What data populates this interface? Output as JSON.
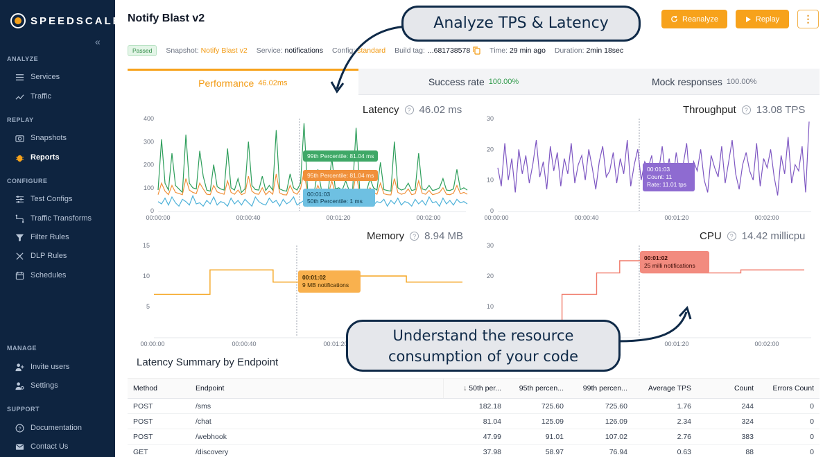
{
  "app": {
    "brand": "SPEEDSCALE",
    "collapse_glyph": "«"
  },
  "sidebar": {
    "sections": [
      {
        "title": "ANALYZE",
        "items": [
          {
            "label": "Services",
            "icon": "list-icon",
            "active": false
          },
          {
            "label": "Traffic",
            "icon": "trend-icon",
            "active": false
          }
        ]
      },
      {
        "title": "REPLAY",
        "items": [
          {
            "label": "Snapshots",
            "icon": "camera-icon",
            "active": false
          },
          {
            "label": "Reports",
            "icon": "bug-icon",
            "active": true
          }
        ]
      },
      {
        "title": "CONFIGURE",
        "items": [
          {
            "label": "Test Configs",
            "icon": "sliders-icon",
            "active": false
          },
          {
            "label": "Traffic Transforms",
            "icon": "transform-icon",
            "active": false
          },
          {
            "label": "Filter Rules",
            "icon": "filter-icon",
            "active": false
          },
          {
            "label": "DLP Rules",
            "icon": "dlp-icon",
            "active": false
          },
          {
            "label": "Schedules",
            "icon": "calendar-icon",
            "active": false
          }
        ]
      },
      {
        "title": "MANAGE",
        "items": [
          {
            "label": "Invite users",
            "icon": "user-plus-icon",
            "active": false
          },
          {
            "label": "Settings",
            "icon": "settings-icon",
            "active": false
          }
        ]
      },
      {
        "title": "SUPPORT",
        "items": [
          {
            "label": "Documentation",
            "icon": "help-icon",
            "active": false
          },
          {
            "label": "Contact Us",
            "icon": "mail-icon",
            "active": false
          }
        ]
      }
    ]
  },
  "header": {
    "title": "Notify Blast v2",
    "reanalyze_label": "Reanalyze",
    "replay_label": "Replay",
    "more_glyph": "⋮"
  },
  "meta": {
    "status": "Passed",
    "snapshot_label": "Snapshot:",
    "snapshot_value": "Notify Blast v2",
    "service_label": "Service:",
    "service_value": "notifications",
    "config_label": "Config:",
    "config_value": "standard",
    "build_label": "Build tag:",
    "build_value": "...681738578",
    "time_label": "Time:",
    "time_value": "29 min ago",
    "duration_label": "Duration:",
    "duration_value": "2min 18sec"
  },
  "tabs": [
    {
      "label": "Performance",
      "value": "46.02ms",
      "active": true
    },
    {
      "label": "Success rate",
      "value": "100.00%",
      "active": false
    },
    {
      "label": "Mock responses",
      "value": "100.00%",
      "active": false
    }
  ],
  "chart_data": [
    {
      "type": "line",
      "title": "Latency",
      "value": "46.02 ms",
      "x_ticks": [
        "00:00:00",
        "00:00:40",
        "00:01:20",
        "00:02:00"
      ],
      "y_ticks": [
        "0",
        "100",
        "200",
        "300",
        "400"
      ],
      "ylim": [
        0,
        400
      ],
      "series": [
        {
          "name": "99th Percentile",
          "color": "#2e9e5b",
          "values": [
            90,
            310,
            120,
            90,
            250,
            110,
            95,
            80,
            330,
            120,
            100,
            95,
            260,
            150,
            90,
            85,
            200,
            105,
            95,
            90,
            270,
            100,
            90,
            140,
            80,
            95,
            300,
            110,
            92,
            90,
            150,
            88,
            110,
            90,
            350,
            95,
            88,
            85,
            160,
            100,
            90,
            120,
            380,
            95,
            90,
            85,
            180,
            92,
            88,
            90,
            230,
            95,
            100,
            90,
            130,
            88,
            92,
            360,
            95,
            90,
            85,
            140,
            100,
            90,
            210,
            92,
            88,
            85,
            300,
            100,
            90,
            95,
            120,
            88,
            92,
            250,
            95,
            90,
            110,
            88,
            92,
            100,
            140,
            90,
            88,
            95,
            180,
            92,
            100,
            90
          ]
        },
        {
          "name": "95th Percentile",
          "color": "#f0903a",
          "values": [
            70,
            120,
            85,
            70,
            110,
            80,
            75,
            70,
            140,
            90,
            80,
            75,
            120,
            95,
            72,
            70,
            110,
            82,
            76,
            72,
            130,
            80,
            72,
            90,
            70,
            76,
            150,
            85,
            74,
            72,
            100,
            70,
            85,
            72,
            160,
            78,
            70,
            69,
            110,
            80,
            72,
            95,
            170,
            76,
            72,
            70,
            110,
            74,
            70,
            72,
            130,
            76,
            80,
            72,
            95,
            70,
            74,
            160,
            76,
            72,
            70,
            100,
            80,
            72,
            120,
            74,
            70,
            69,
            140,
            80,
            72,
            76,
            95,
            70,
            74,
            130,
            76,
            72,
            88,
            70,
            74,
            80,
            100,
            72,
            70,
            76,
            110,
            74,
            80,
            72
          ]
        },
        {
          "name": "50th Percentile",
          "color": "#4fb2d9",
          "values": [
            40,
            30,
            55,
            25,
            60,
            35,
            20,
            50,
            40,
            25,
            65,
            30,
            35,
            20,
            45,
            30,
            60,
            25,
            40,
            35,
            20,
            55,
            30,
            45,
            25,
            50,
            35,
            20,
            60,
            40,
            30,
            25,
            55,
            35,
            45,
            20,
            50,
            30,
            40,
            60,
            25,
            35,
            45,
            20,
            55,
            30,
            40,
            25,
            60,
            35,
            20,
            45,
            30,
            50,
            25,
            40,
            35,
            55,
            20,
            45,
            30,
            60,
            25,
            40,
            35,
            50,
            20,
            45,
            30,
            55,
            25,
            40,
            35,
            20,
            50,
            30,
            45,
            25,
            60,
            35,
            40,
            20,
            55,
            30,
            45,
            25,
            50,
            35,
            40,
            30
          ]
        }
      ],
      "tooltip": {
        "time": "00:01:03",
        "p99": "99th Percentile: 81.04 ms",
        "p95": "95th Percentile: 81.04 ms",
        "p50": "50th Percentile: 1 ms"
      }
    },
    {
      "type": "line",
      "title": "Throughput",
      "value": "13.08 TPS",
      "x_ticks": [
        "00:00:00",
        "00:00:40",
        "00:01:20",
        "00:02:00"
      ],
      "y_ticks": [
        "0",
        "10",
        "20",
        "30"
      ],
      "ylim": [
        0,
        30
      ],
      "series": [
        {
          "name": "Throughput",
          "color": "#7e57c2",
          "values": [
            14,
            8,
            22,
            10,
            17,
            6,
            20,
            12,
            18,
            9,
            15,
            23,
            11,
            16,
            7,
            21,
            13,
            19,
            8,
            17,
            12,
            22,
            9,
            15,
            18,
            10,
            20,
            14,
            7,
            16,
            21,
            11,
            13,
            19,
            9,
            17,
            12,
            23,
            8,
            15,
            20,
            10,
            16,
            14,
            18,
            7,
            13,
            21,
            11,
            17,
            9,
            19,
            12,
            15,
            22,
            8,
            16,
            13,
            20,
            10,
            6,
            18,
            14,
            11,
            21,
            9,
            16,
            23,
            12,
            7,
            15,
            19,
            13,
            10,
            22,
            8,
            17,
            14,
            20,
            11,
            5,
            18,
            12,
            24,
            9,
            15,
            13,
            21,
            6,
            29
          ]
        }
      ],
      "tooltip": {
        "time": "00:01:03",
        "count": "Count: 11",
        "rate": "Rate: 11.01 tps"
      }
    },
    {
      "type": "line",
      "title": "Memory",
      "value": "8.94 MB",
      "x_ticks": [
        "00:00:00",
        "00:00:40",
        "00:01:20"
      ],
      "y_ticks": [
        "5",
        "10",
        "15"
      ],
      "ylim": [
        0,
        15
      ],
      "series": [
        {
          "name": "Memory",
          "color": "#f5a623",
          "values": [
            7,
            7,
            7,
            7,
            7,
            7,
            7,
            7,
            11,
            11,
            11,
            11,
            11,
            11,
            11,
            11,
            11,
            9,
            9,
            9,
            9,
            9,
            9,
            10,
            10,
            10,
            10,
            10,
            10,
            10,
            10,
            10,
            10,
            10,
            10,
            10,
            9,
            9,
            9,
            9,
            9,
            9,
            9,
            9,
            9
          ]
        }
      ],
      "tooltip": {
        "time": "00:01:02",
        "value": "9 MB notifications"
      }
    },
    {
      "type": "line",
      "title": "CPU",
      "value": "14.42 millicpu",
      "x_ticks": [
        "00:01:20",
        "00:02:00"
      ],
      "y_ticks": [
        "10",
        "20",
        "30"
      ],
      "ylim": [
        0,
        30
      ],
      "series": [
        {
          "name": "CPU",
          "color": "#f07a6a",
          "values": [
            0,
            5,
            14,
            14,
            14,
            14,
            14,
            14,
            21,
            21,
            21,
            21,
            25,
            25,
            25,
            25,
            21,
            21,
            21,
            21,
            21,
            21,
            21,
            21,
            21,
            21,
            21,
            21,
            21,
            21,
            21,
            21,
            21,
            22,
            22,
            22,
            22,
            22,
            22,
            22,
            22,
            22,
            22,
            22,
            22
          ]
        }
      ],
      "tooltip": {
        "time": "00:01:02",
        "value": "25 milli notifications"
      }
    }
  ],
  "callouts": {
    "top": "Analyze TPS & Latency",
    "bottom_line1": "Understand the resource",
    "bottom_line2": "consumption of your code"
  },
  "summary": {
    "title": "Latency Summary by Endpoint",
    "columns": [
      "Method",
      "Endpoint",
      "50th per...",
      "95th percen...",
      "99th percen...",
      "Average TPS",
      "Count",
      "Errors Count"
    ],
    "rows": [
      [
        "POST",
        "/sms",
        "182.18",
        "725.60",
        "725.60",
        "1.76",
        "244",
        "0"
      ],
      [
        "POST",
        "/chat",
        "81.04",
        "125.09",
        "126.09",
        "2.34",
        "324",
        "0"
      ],
      [
        "POST",
        "/webhook",
        "47.99",
        "91.01",
        "107.02",
        "2.76",
        "383",
        "0"
      ],
      [
        "GET",
        "/discovery",
        "37.98",
        "58.97",
        "76.94",
        "0.63",
        "88",
        "0"
      ]
    ]
  },
  "colors": {
    "accent": "#f7a21b",
    "sidebar": "#0e2440",
    "success": "#2f9a4a"
  }
}
